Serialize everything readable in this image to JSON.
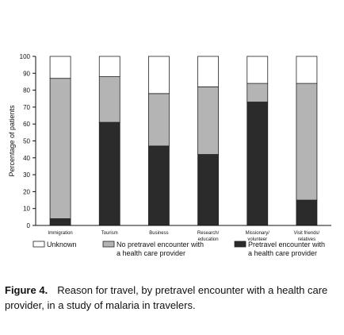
{
  "chart_data": {
    "type": "bar",
    "stacked": true,
    "ylabel": "Percentage of patients",
    "ylim": [
      0,
      100
    ],
    "yticks": [
      0,
      10,
      20,
      30,
      40,
      50,
      60,
      70,
      80,
      90,
      100
    ],
    "categories": [
      [
        "Immigration"
      ],
      [
        "Tourism"
      ],
      [
        "Business"
      ],
      [
        "Research/",
        "education"
      ],
      [
        "Missionary/",
        "volunteer"
      ],
      [
        "Visit friends/",
        "relatives"
      ]
    ],
    "series": [
      {
        "name": "Pretravel encounter with a health care provider",
        "legend_lines": [
          "Pretravel encounter with",
          "a health care provider"
        ],
        "color": "#2b2b2b",
        "values": [
          4,
          61,
          47,
          42,
          73,
          15
        ]
      },
      {
        "name": "No pretravel encounter with a health care provider",
        "legend_lines": [
          "No pretravel encounter with",
          "a health care provider"
        ],
        "color": "#b4b4b4",
        "values": [
          83,
          27,
          31,
          40,
          11,
          69
        ]
      },
      {
        "name": "Unknown",
        "legend_lines": [
          "Unknown"
        ],
        "color": "#ffffff",
        "values": [
          13,
          12,
          22,
          18,
          16,
          16
        ]
      }
    ],
    "legend_order": [
      2,
      1,
      0
    ]
  },
  "caption": {
    "label": "Figure 4.",
    "text": "Reason for travel, by pretravel encounter with a health care provider, in a study of malaria in travelers."
  }
}
